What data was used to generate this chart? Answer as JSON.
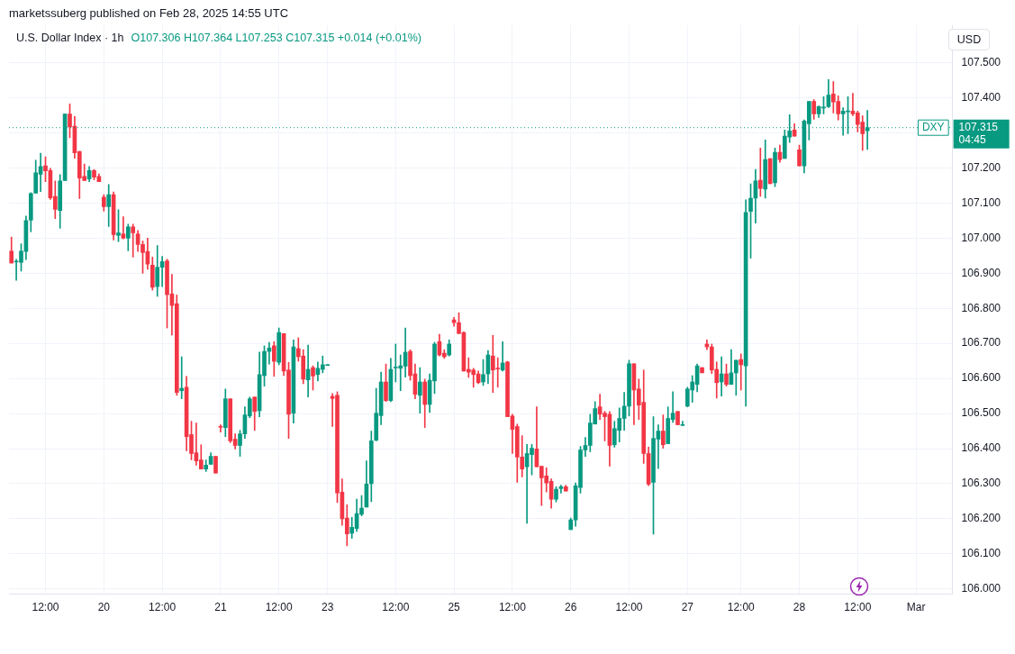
{
  "chart_data": {
    "type": "candlestick",
    "title": "U.S. Dollar Index · 1h",
    "subtitle": "O107.306 H107.364 L107.253 C107.315 +0.014 (+0.01%)",
    "annotations": [
      "marketssuberg published on Feb 28, 2025 14:55 UTC",
      "USD",
      "107.315",
      "04:45"
    ],
    "categories": [
      null,
      null,
      null,
      null,
      null,
      null,
      null,
      "12:00",
      null,
      null,
      null,
      null,
      null,
      null,
      null,
      null,
      null,
      null,
      null,
      "20",
      null,
      null,
      null,
      null,
      null,
      null,
      null,
      null,
      null,
      null,
      null,
      "12:00",
      null,
      null,
      null,
      null,
      null,
      null,
      null,
      null,
      null,
      null,
      null,
      "21",
      null,
      null,
      null,
      null,
      null,
      null,
      null,
      null,
      null,
      null,
      null,
      "12:00",
      null,
      null,
      null,
      null,
      null,
      null,
      null,
      null,
      null,
      "23",
      null,
      null,
      null,
      null,
      null,
      null,
      null,
      null,
      null,
      null,
      null,
      null,
      null,
      "12:00",
      null,
      null,
      null,
      null,
      null,
      null,
      null,
      null,
      null,
      null,
      null,
      "25",
      null,
      null,
      null,
      null,
      null,
      null,
      null,
      null,
      null,
      null,
      null,
      "12:00",
      null,
      null,
      null,
      null,
      null,
      null,
      null,
      null,
      null,
      null,
      null,
      "26",
      null,
      null,
      null,
      null,
      null,
      null,
      null,
      null,
      null,
      null,
      null,
      "12:00",
      null,
      null,
      null,
      null,
      null,
      null,
      null,
      null,
      null,
      null,
      null,
      "27",
      null,
      null,
      null,
      null,
      null,
      null,
      null,
      null,
      null,
      null,
      "12:00",
      null,
      null,
      null,
      null,
      null,
      null,
      null,
      null,
      null,
      null,
      null,
      "28",
      null,
      null,
      null,
      null,
      null,
      null,
      null,
      null,
      null,
      null,
      null,
      "12:00",
      null,
      null,
      null,
      null,
      null,
      null,
      null,
      null,
      null,
      null,
      null,
      "Mar",
      null,
      null,
      null,
      null,
      null,
      null,
      null
    ],
    "ohlc": [
      [
        106.963,
        107.003,
        106.929,
        106.929
      ],
      [
        106.932,
        106.94,
        106.88,
        106.933
      ],
      [
        106.931,
        106.984,
        106.906,
        106.963
      ],
      [
        106.962,
        107.063,
        106.939,
        107.05
      ],
      [
        107.051,
        107.13,
        107.018,
        107.127
      ],
      [
        107.128,
        107.222,
        107.128,
        107.186
      ],
      [
        107.182,
        107.242,
        107.133,
        107.204
      ],
      [
        107.206,
        107.232,
        107.161,
        107.192
      ],
      [
        107.193,
        107.199,
        107.11,
        107.115
      ],
      [
        107.119,
        107.163,
        107.056,
        107.082
      ],
      [
        107.079,
        107.181,
        107.028,
        107.163
      ],
      [
        107.164,
        107.354,
        107.164,
        107.354
      ],
      [
        107.354,
        107.383,
        107.286,
        107.317
      ],
      [
        107.319,
        107.347,
        107.228,
        107.243
      ],
      [
        107.247,
        107.247,
        107.113,
        107.171
      ],
      [
        107.176,
        107.211,
        107.164,
        107.164
      ],
      [
        107.169,
        107.204,
        107.161,
        107.193
      ],
      [
        107.193,
        107.196,
        107.166,
        107.174
      ],
      [
        107.176,
        107.183,
        107.161,
        107.161
      ],
      [
        107.117,
        107.124,
        107.077,
        107.09
      ],
      [
        107.09,
        107.153,
        107.033,
        107.124
      ],
      [
        107.124,
        107.132,
        106.995,
        107.01
      ],
      [
        107.008,
        107.081,
        106.99,
        107.015
      ],
      [
        107.012,
        107.061,
        106.998,
        107.0
      ],
      [
        107.0,
        107.04,
        106.964,
        107.032
      ],
      [
        107.032,
        107.04,
        106.946,
        107.015
      ],
      [
        107.012,
        107.022,
        106.962,
        106.982
      ],
      [
        106.982,
        106.992,
        106.9,
        106.959
      ],
      [
        106.962,
        107.0,
        106.911,
        106.926
      ],
      [
        106.923,
        106.946,
        106.852,
        106.86
      ],
      [
        106.862,
        106.979,
        106.834,
        106.917
      ],
      [
        106.917,
        106.948,
        106.862,
        106.933
      ],
      [
        106.935,
        106.94,
        106.744,
        106.839
      ],
      [
        106.841,
        106.897,
        106.724,
        106.808
      ],
      [
        106.813,
        106.838,
        106.552,
        106.56
      ],
      [
        106.565,
        106.662,
        106.542,
        106.572
      ],
      [
        106.575,
        106.606,
        106.394,
        106.434
      ],
      [
        106.44,
        106.478,
        106.368,
        106.386
      ],
      [
        106.388,
        106.473,
        106.353,
        106.365
      ],
      [
        106.368,
        106.411,
        106.342,
        106.342
      ],
      [
        106.342,
        106.368,
        106.335,
        106.353
      ],
      [
        106.355,
        106.388,
        106.355,
        106.378
      ],
      [
        106.378,
        106.378,
        106.33,
        106.33
      ],
      [
        106.462,
        106.468,
        106.447,
        106.461
      ],
      [
        106.46,
        106.57,
        106.434,
        106.542
      ],
      [
        106.542,
        106.542,
        106.417,
        106.422
      ],
      [
        106.427,
        106.442,
        106.399,
        106.409
      ],
      [
        106.409,
        106.452,
        106.378,
        106.442
      ],
      [
        106.442,
        106.519,
        106.429,
        106.496
      ],
      [
        106.493,
        106.547,
        106.488,
        106.542
      ],
      [
        106.547,
        106.547,
        106.452,
        106.506
      ],
      [
        106.508,
        106.675,
        106.491,
        106.611
      ],
      [
        106.608,
        106.693,
        106.578,
        106.677
      ],
      [
        106.677,
        106.703,
        106.641,
        106.687
      ],
      [
        106.693,
        106.705,
        106.606,
        106.649
      ],
      [
        106.646,
        106.744,
        106.639,
        106.731
      ],
      [
        106.728,
        106.728,
        106.608,
        106.621
      ],
      [
        106.624,
        106.646,
        106.429,
        106.498
      ],
      [
        106.501,
        106.71,
        106.473,
        106.69
      ],
      [
        106.685,
        106.716,
        106.649,
        106.662
      ],
      [
        106.664,
        106.682,
        106.585,
        106.598
      ],
      [
        106.596,
        106.695,
        106.547,
        106.626
      ],
      [
        106.631,
        106.636,
        106.567,
        106.607
      ],
      [
        106.611,
        106.647,
        106.593,
        106.629
      ],
      [
        106.626,
        106.664,
        106.616,
        106.639
      ],
      [
        106.637,
        106.639,
        106.637,
        106.639
      ],
      [
        106.549,
        106.557,
        106.463,
        106.543
      ],
      [
        106.552,
        106.562,
        106.246,
        106.274
      ],
      [
        106.276,
        106.314,
        106.181,
        106.2
      ],
      [
        106.202,
        106.24,
        106.123,
        106.157
      ],
      [
        106.159,
        106.204,
        106.144,
        106.176
      ],
      [
        106.172,
        106.256,
        106.164,
        106.215
      ],
      [
        106.213,
        106.266,
        106.208,
        106.23
      ],
      [
        106.233,
        106.365,
        106.233,
        106.299
      ],
      [
        106.3,
        106.45,
        106.249,
        106.422
      ],
      [
        106.424,
        106.572,
        106.422,
        106.501
      ],
      [
        106.494,
        106.618,
        106.468,
        106.59
      ],
      [
        106.59,
        106.641,
        106.534,
        106.537
      ],
      [
        106.537,
        106.657,
        106.534,
        106.626
      ],
      [
        106.63,
        106.698,
        106.59,
        106.631
      ],
      [
        106.629,
        106.667,
        106.565,
        106.636
      ],
      [
        106.635,
        106.744,
        106.604,
        106.675
      ],
      [
        106.677,
        106.682,
        106.595,
        106.608
      ],
      [
        106.613,
        106.641,
        106.542,
        106.555
      ],
      [
        106.552,
        106.631,
        106.501,
        106.59
      ],
      [
        106.59,
        106.598,
        106.46,
        106.526
      ],
      [
        106.526,
        106.613,
        106.503,
        106.595
      ],
      [
        106.593,
        106.703,
        106.557,
        106.698
      ],
      [
        106.705,
        106.726,
        106.664,
        106.667
      ],
      [
        106.672,
        106.682,
        106.657,
        106.662
      ],
      [
        106.667,
        106.71,
        106.664,
        106.698
      ],
      [
        106.767,
        106.774,
        106.749,
        106.759
      ],
      [
        106.759,
        106.787,
        106.728,
        106.728
      ],
      [
        106.731,
        106.733,
        106.621,
        106.621
      ],
      [
        106.626,
        106.659,
        106.603,
        106.618
      ],
      [
        106.624,
        106.629,
        106.575,
        106.611
      ],
      [
        106.613,
        106.621,
        106.585,
        106.588
      ],
      [
        106.59,
        106.654,
        106.58,
        106.611
      ],
      [
        106.613,
        106.68,
        106.585,
        106.667
      ],
      [
        106.664,
        106.723,
        106.56,
        106.624
      ],
      [
        106.629,
        106.659,
        106.575,
        106.627
      ],
      [
        106.624,
        106.705,
        106.621,
        106.644
      ],
      [
        106.647,
        106.649,
        106.491,
        106.491
      ],
      [
        106.493,
        106.498,
        106.386,
        106.455
      ],
      [
        106.463,
        106.47,
        106.304,
        106.376
      ],
      [
        106.376,
        106.437,
        106.319,
        106.342
      ],
      [
        106.348,
        106.412,
        106.187,
        106.386
      ],
      [
        106.383,
        106.412,
        106.325,
        106.401
      ],
      [
        106.399,
        106.519,
        106.348,
        106.348
      ],
      [
        106.35,
        106.35,
        106.238,
        106.317
      ],
      [
        106.322,
        106.345,
        106.276,
        106.302
      ],
      [
        106.307,
        106.314,
        106.23,
        106.256
      ],
      [
        106.256,
        106.291,
        106.248,
        106.284
      ],
      [
        106.286,
        106.296,
        106.273,
        106.291
      ],
      [
        106.291,
        106.296,
        106.279,
        106.279
      ],
      [
        106.169,
        106.202,
        106.169,
        106.197
      ],
      [
        106.197,
        106.302,
        106.179,
        106.294
      ],
      [
        106.289,
        106.406,
        106.273,
        106.396
      ],
      [
        106.396,
        106.432,
        106.378,
        106.409
      ],
      [
        106.409,
        106.498,
        106.391,
        106.473
      ],
      [
        106.47,
        106.534,
        106.47,
        106.514
      ],
      [
        106.519,
        106.555,
        106.483,
        106.498
      ],
      [
        106.501,
        106.506,
        106.422,
        106.491
      ],
      [
        106.498,
        106.506,
        106.35,
        106.409
      ],
      [
        106.411,
        106.478,
        106.404,
        106.457
      ],
      [
        106.452,
        106.516,
        106.419,
        106.486
      ],
      [
        106.486,
        106.56,
        106.452,
        106.521
      ],
      [
        106.521,
        106.652,
        106.493,
        106.642
      ],
      [
        106.642,
        106.642,
        106.468,
        106.567
      ],
      [
        106.57,
        106.598,
        106.483,
        106.524
      ],
      [
        106.532,
        106.624,
        106.358,
        106.386
      ],
      [
        106.386,
        106.404,
        106.294,
        106.299
      ],
      [
        106.304,
        106.491,
        106.156,
        106.429
      ],
      [
        106.427,
        106.468,
        106.343,
        106.45
      ],
      [
        106.45,
        106.496,
        106.401,
        106.411
      ],
      [
        106.414,
        106.519,
        106.414,
        106.486
      ],
      [
        106.483,
        106.562,
        106.475,
        106.501
      ],
      [
        106.506,
        106.506,
        106.468,
        106.468
      ],
      [
        106.466,
        106.478,
        106.466,
        106.468
      ],
      [
        106.521,
        106.575,
        106.519,
        106.57
      ],
      [
        106.567,
        106.608,
        106.532,
        106.59
      ],
      [
        106.583,
        106.641,
        106.562,
        106.636
      ],
      [
        106.631,
        106.631,
        106.616,
        106.616
      ],
      [
        106.698,
        106.71,
        106.682,
        106.69
      ],
      [
        106.69,
        106.698,
        106.614,
        106.624
      ],
      [
        106.626,
        106.647,
        106.544,
        106.588
      ],
      [
        106.59,
        106.662,
        106.55,
        106.613
      ],
      [
        106.613,
        106.641,
        106.578,
        106.583
      ],
      [
        106.583,
        106.682,
        106.583,
        106.616
      ],
      [
        106.616,
        106.652,
        106.552,
        106.652
      ],
      [
        106.654,
        106.67,
        106.567,
        106.639
      ],
      [
        106.636,
        107.109,
        106.521,
        107.073
      ],
      [
        107.076,
        107.155,
        106.943,
        107.114
      ],
      [
        107.114,
        107.196,
        107.043,
        107.163
      ],
      [
        107.165,
        107.257,
        107.119,
        107.142
      ],
      [
        107.14,
        107.28,
        107.114,
        107.224
      ],
      [
        107.227,
        107.227,
        107.155,
        107.155
      ],
      [
        107.158,
        107.257,
        107.147,
        107.245
      ],
      [
        107.245,
        107.265,
        107.216,
        107.224
      ],
      [
        107.227,
        107.308,
        107.227,
        107.291
      ],
      [
        107.288,
        107.352,
        107.273,
        107.306
      ],
      [
        107.308,
        107.326,
        107.291,
        107.291
      ],
      [
        107.252,
        107.265,
        107.206,
        107.206
      ],
      [
        107.206,
        107.337,
        107.186,
        107.334
      ],
      [
        107.326,
        107.39,
        107.28,
        107.39
      ],
      [
        107.39,
        107.395,
        107.339,
        107.354
      ],
      [
        107.354,
        107.377,
        107.344,
        107.375
      ],
      [
        107.371,
        107.403,
        107.354,
        107.372
      ],
      [
        107.375,
        107.452,
        107.372,
        107.408
      ],
      [
        107.411,
        107.446,
        107.357,
        107.388
      ],
      [
        107.39,
        107.406,
        107.337,
        107.354
      ],
      [
        107.354,
        107.372,
        107.293,
        107.362
      ],
      [
        107.36,
        107.403,
        107.298,
        107.362
      ],
      [
        107.362,
        107.413,
        107.349,
        107.354
      ],
      [
        107.357,
        107.362,
        107.303,
        107.324
      ],
      [
        107.331,
        107.349,
        107.25,
        107.298
      ],
      [
        107.306,
        107.364,
        107.253,
        107.315
      ],
      null,
      null,
      null,
      null,
      null,
      null,
      null,
      null,
      null,
      null,
      null,
      null,
      null,
      null,
      null,
      null,
      null
    ],
    "colors": [
      "#f23645",
      "#089981",
      "#089981",
      "#089981",
      "#089981",
      "#089981",
      "#089981",
      "#f23645",
      "#f23645",
      "#f23645",
      "#089981",
      "#089981",
      "#f23645",
      "#f23645",
      "#f23645",
      "#f23645",
      "#089981",
      "#f23645",
      "#f23645",
      "#f23645",
      "#089981",
      "#f23645",
      "#089981",
      "#f23645",
      "#089981",
      "#f23645",
      "#f23645",
      "#f23645",
      "#f23645",
      "#f23645",
      "#089981",
      "#089981",
      "#f23645",
      "#f23645",
      "#f23645",
      "#089981",
      "#f23645",
      "#f23645",
      "#f23645",
      "#f23645",
      "#089981",
      "#089981",
      "#f23645",
      "#f23645",
      "#089981",
      "#f23645",
      "#f23645",
      "#089981",
      "#089981",
      "#089981",
      "#f23645",
      "#089981",
      "#089981",
      "#089981",
      "#f23645",
      "#089981",
      "#f23645",
      "#f23645",
      "#089981",
      "#f23645",
      "#f23645",
      "#089981",
      "#f23645",
      "#089981",
      "#089981",
      "#089981",
      "#f23645",
      "#f23645",
      "#f23645",
      "#f23645",
      "#089981",
      "#089981",
      "#089981",
      "#089981",
      "#089981",
      "#089981",
      "#089981",
      "#f23645",
      "#089981",
      "#089981",
      "#089981",
      "#089981",
      "#f23645",
      "#f23645",
      "#089981",
      "#f23645",
      "#089981",
      "#089981",
      "#f23645",
      "#f23645",
      "#089981",
      "#f23645",
      "#f23645",
      "#f23645",
      "#f23645",
      "#f23645",
      "#f23645",
      "#089981",
      "#089981",
      "#f23645",
      "#f23645",
      "#089981",
      "#f23645",
      "#f23645",
      "#f23645",
      "#f23645",
      "#089981",
      "#089981",
      "#f23645",
      "#f23645",
      "#f23645",
      "#f23645",
      "#089981",
      "#089981",
      "#f23645",
      "#089981",
      "#089981",
      "#089981",
      "#089981",
      "#089981",
      "#089981",
      "#f23645",
      "#f23645",
      "#f23645",
      "#089981",
      "#089981",
      "#089981",
      "#089981",
      "#f23645",
      "#f23645",
      "#f23645",
      "#f23645",
      "#089981",
      "#089981",
      "#f23645",
      "#089981",
      "#089981",
      "#f23645",
      "#089981",
      "#089981",
      "#089981",
      "#089981",
      "#f23645",
      "#f23645",
      "#f23645",
      "#f23645",
      "#089981",
      "#f23645",
      "#089981",
      "#089981",
      "#f23645",
      "#089981",
      "#089981",
      "#089981",
      "#f23645",
      "#089981",
      "#f23645",
      "#089981",
      "#f23645",
      "#089981",
      "#089981",
      "#f23645",
      "#f23645",
      "#089981",
      "#089981",
      "#f23645",
      "#089981",
      "#089981",
      "#089981",
      "#f23645",
      "#f23645",
      "#089981",
      "#089981",
      "#f23645",
      "#f23645",
      "#f23645",
      "#089981",
      null,
      null,
      null,
      null,
      null,
      null,
      null,
      null,
      null,
      null,
      null,
      null,
      null,
      null,
      null,
      null,
      null
    ],
    "ylim": [
      105.985,
      107.607
    ],
    "yticks": [
      {
        "value": 106,
        "label": "106.000"
      },
      {
        "value": 106.1,
        "label": "106.100"
      },
      {
        "value": 106.2,
        "label": "106.200"
      },
      {
        "value": 106.3,
        "label": "106.300"
      },
      {
        "value": 106.4,
        "label": "106.400"
      },
      {
        "value": 106.5,
        "label": "106.500"
      },
      {
        "value": 106.6,
        "label": "106.600"
      },
      {
        "value": 106.7,
        "label": "106.700"
      },
      {
        "value": 106.8,
        "label": "106.800"
      },
      {
        "value": 106.9,
        "label": "106.900"
      },
      {
        "value": 107,
        "label": "107.000"
      },
      {
        "value": 107.1,
        "label": "107.100"
      },
      {
        "value": 107.2,
        "label": "107.200"
      },
      {
        "value": 107.3,
        "label": null
      },
      {
        "value": 107.4,
        "label": "107.400"
      },
      {
        "value": 107.5,
        "label": "107.500"
      }
    ],
    "ref_lines": [
      {
        "axis": "y",
        "value": 107.315,
        "label": "DXY",
        "color": "#089981",
        "line_style": "dotted"
      }
    ],
    "grid": true
  }
}
